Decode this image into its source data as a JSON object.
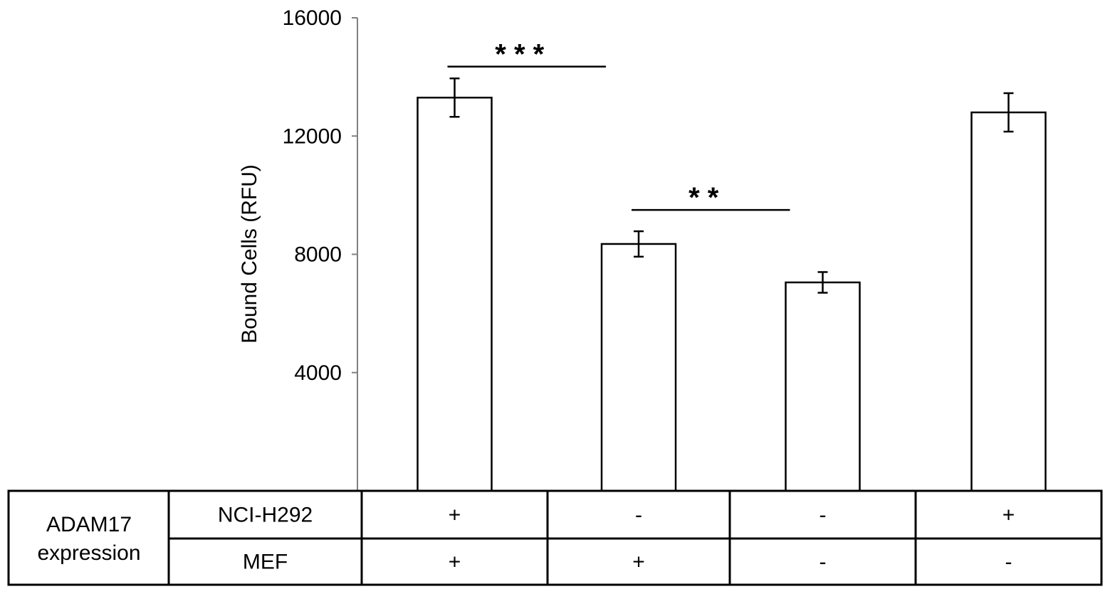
{
  "chart_data": {
    "type": "bar",
    "title": "",
    "xlabel": "",
    "ylabel": "Bound Cells (RFU)",
    "ylim": [
      0,
      16000
    ],
    "yticks": [
      4000,
      8000,
      12000,
      16000
    ],
    "grid": false,
    "bar_fill": "#ffffff",
    "bar_stroke": "#000000",
    "series": [
      {
        "values": [
          13300,
          8350,
          7050,
          12800
        ],
        "errors": [
          650,
          430,
          350,
          650
        ]
      }
    ],
    "significance": [
      {
        "from": 0,
        "to": 1,
        "label": "* * *",
        "y": 14350
      },
      {
        "from": 1,
        "to": 2,
        "label": "* *",
        "y": 9500
      }
    ]
  },
  "table": {
    "header": "ADAM17\nexpression",
    "header_lines": [
      "ADAM17",
      "expression"
    ],
    "rows": [
      {
        "label": "NCI-H292",
        "cells": [
          "+",
          "-",
          "-",
          "+"
        ]
      },
      {
        "label": "MEF",
        "cells": [
          "+",
          "+",
          "-",
          "-"
        ]
      }
    ]
  }
}
